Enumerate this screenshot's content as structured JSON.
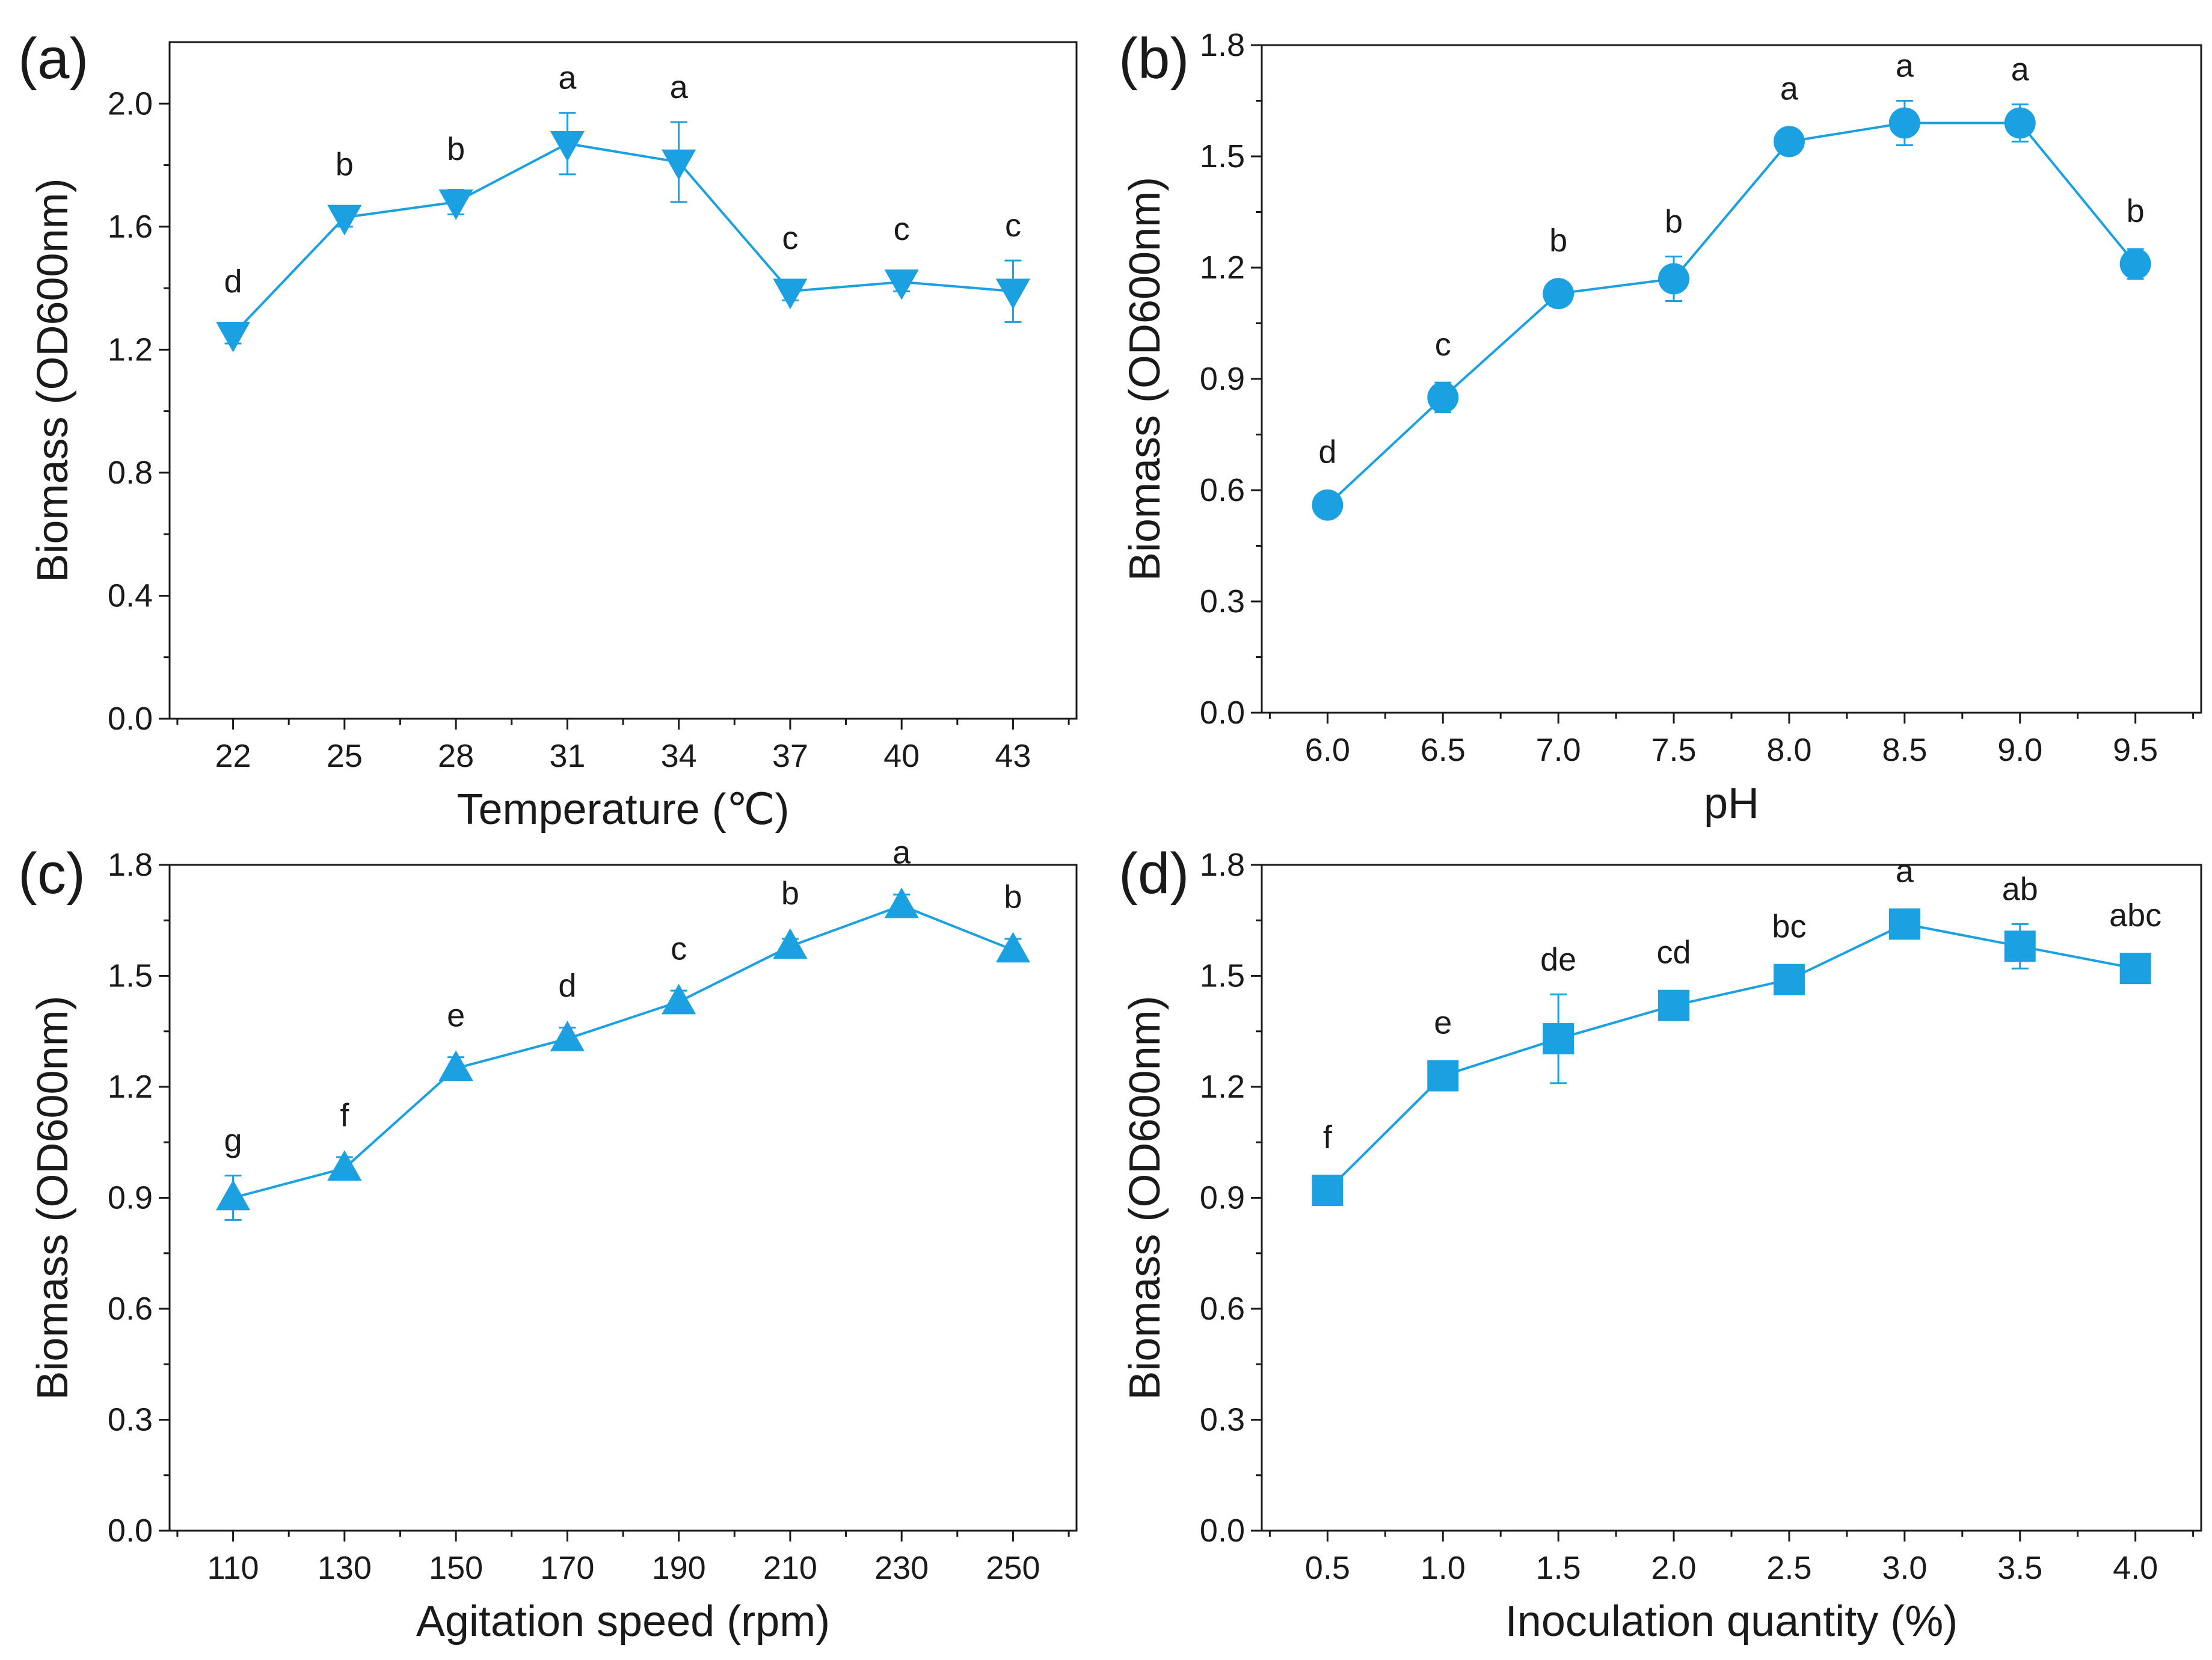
{
  "colors": {
    "series": "#1ba1e2",
    "axis": "#1a1a1a"
  },
  "chart_data": [
    {
      "type": "line",
      "panel_label": "(a)",
      "marker": "triangle-down",
      "xlabel": "Temperature (℃)",
      "ylabel": "Biomass (OD600nm)",
      "ylim": [
        0,
        2.2
      ],
      "yticks": [
        0.0,
        0.4,
        0.8,
        1.2,
        1.6,
        2.0
      ],
      "ytick_labels": [
        "0.0",
        "0.4",
        "0.8",
        "1.2",
        "1.6",
        "2.0"
      ],
      "categories": [
        "22",
        "25",
        "28",
        "31",
        "34",
        "37",
        "40",
        "43"
      ],
      "values": [
        1.25,
        1.63,
        1.68,
        1.87,
        1.81,
        1.39,
        1.42,
        1.39
      ],
      "errors": [
        0.03,
        0.03,
        0.04,
        0.1,
        0.13,
        0.03,
        0.03,
        0.1
      ],
      "significance": [
        "d",
        "b",
        "b",
        "a",
        "a",
        "c",
        "c",
        "c"
      ],
      "grid": false
    },
    {
      "type": "line",
      "panel_label": "(b)",
      "marker": "circle",
      "xlabel": "pH",
      "ylabel": "Biomass (OD600nm)",
      "ylim": [
        0,
        1.8
      ],
      "yticks": [
        0.0,
        0.3,
        0.6,
        0.9,
        1.2,
        1.5,
        1.8
      ],
      "ytick_labels": [
        "0.0",
        "0.3",
        "0.6",
        "0.9",
        "1.2",
        "1.5",
        "1.8"
      ],
      "categories": [
        "6.0",
        "6.5",
        "7.0",
        "7.5",
        "8.0",
        "8.5",
        "9.0",
        "9.5"
      ],
      "values": [
        0.56,
        0.85,
        1.13,
        1.17,
        1.54,
        1.59,
        1.59,
        1.21
      ],
      "errors": [
        0.02,
        0.04,
        0.02,
        0.06,
        0.02,
        0.06,
        0.05,
        0.04
      ],
      "significance": [
        "d",
        "c",
        "b",
        "b",
        "a",
        "a",
        "a",
        "b"
      ],
      "grid": false
    },
    {
      "type": "line",
      "panel_label": "(c)",
      "marker": "triangle-up",
      "xlabel": "Agitation speed (rpm)",
      "ylabel": "Biomass (OD600nm)",
      "ylim": [
        0,
        1.8
      ],
      "yticks": [
        0.0,
        0.3,
        0.6,
        0.9,
        1.2,
        1.5,
        1.8
      ],
      "ytick_labels": [
        "0.0",
        "0.3",
        "0.6",
        "0.9",
        "1.2",
        "1.5",
        "1.8"
      ],
      "categories": [
        "110",
        "130",
        "150",
        "170",
        "190",
        "210",
        "230",
        "250"
      ],
      "values": [
        0.9,
        0.98,
        1.25,
        1.33,
        1.43,
        1.58,
        1.69,
        1.57
      ],
      "errors": [
        0.06,
        0.03,
        0.03,
        0.03,
        0.03,
        0.02,
        0.03,
        0.03
      ],
      "significance": [
        "g",
        "f",
        "e",
        "d",
        "c",
        "b",
        "a",
        "b"
      ],
      "grid": false
    },
    {
      "type": "line",
      "panel_label": "(d)",
      "marker": "square",
      "xlabel": "Inoculation quantity (%)",
      "ylabel": "Biomass (OD600nm)",
      "ylim": [
        0,
        1.8
      ],
      "yticks": [
        0.0,
        0.3,
        0.6,
        0.9,
        1.2,
        1.5,
        1.8
      ],
      "ytick_labels": [
        "0.0",
        "0.3",
        "0.6",
        "0.9",
        "1.2",
        "1.5",
        "1.8"
      ],
      "categories": [
        "0.5",
        "1.0",
        "1.5",
        "2.0",
        "2.5",
        "3.0",
        "3.5",
        "4.0"
      ],
      "values": [
        0.92,
        1.23,
        1.33,
        1.42,
        1.49,
        1.64,
        1.58,
        1.52
      ],
      "errors": [
        0.01,
        0.01,
        0.12,
        0.01,
        0.01,
        0.01,
        0.06,
        0.01
      ],
      "significance": [
        "f",
        "e",
        "de",
        "cd",
        "bc",
        "a",
        "ab",
        "abc"
      ],
      "grid": false
    }
  ]
}
